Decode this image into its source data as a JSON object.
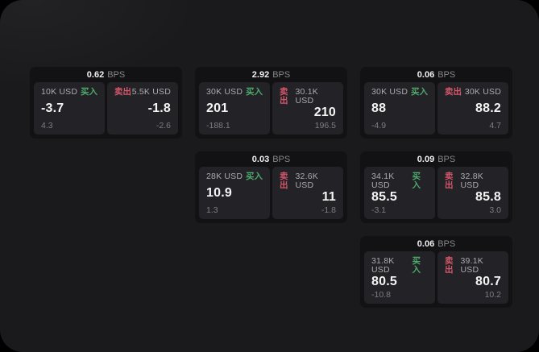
{
  "labels": {
    "buy": "买入",
    "sell": "卖出",
    "bps_unit": "BPS"
  },
  "colors": {
    "buy": "#4da96c",
    "sell": "#d4566a"
  },
  "cards": [
    {
      "row": 1,
      "col": 1,
      "bps": "0.62",
      "buy": {
        "notional": "10K USD",
        "value": "-3.7",
        "sub": "4.3"
      },
      "sell": {
        "notional": "5.5K USD",
        "value": "-1.8",
        "sub": "-2.6"
      }
    },
    {
      "row": 1,
      "col": 2,
      "bps": "2.92",
      "buy": {
        "notional": "30K USD",
        "value": "201",
        "sub": "-188.1"
      },
      "sell": {
        "notional": "30.1K USD",
        "value": "210",
        "sub": "196.5"
      }
    },
    {
      "row": 1,
      "col": 3,
      "bps": "0.06",
      "buy": {
        "notional": "30K USD",
        "value": "88",
        "sub": "-4.9"
      },
      "sell": {
        "notional": "30K USD",
        "value": "88.2",
        "sub": "4.7"
      }
    },
    {
      "row": 2,
      "col": 2,
      "bps": "0.03",
      "buy": {
        "notional": "28K USD",
        "value": "10.9",
        "sub": "1.3"
      },
      "sell": {
        "notional": "32.6K USD",
        "value": "11",
        "sub": "-1.8"
      }
    },
    {
      "row": 2,
      "col": 3,
      "bps": "0.09",
      "buy": {
        "notional": "34.1K USD",
        "value": "85.5",
        "sub": "-3.1"
      },
      "sell": {
        "notional": "32.8K USD",
        "value": "85.8",
        "sub": "3.0"
      }
    },
    {
      "row": 3,
      "col": 3,
      "bps": "0.06",
      "buy": {
        "notional": "31.8K USD",
        "value": "80.5",
        "sub": "-10.8"
      },
      "sell": {
        "notional": "39.1K USD",
        "value": "80.7",
        "sub": "10.2"
      }
    }
  ]
}
